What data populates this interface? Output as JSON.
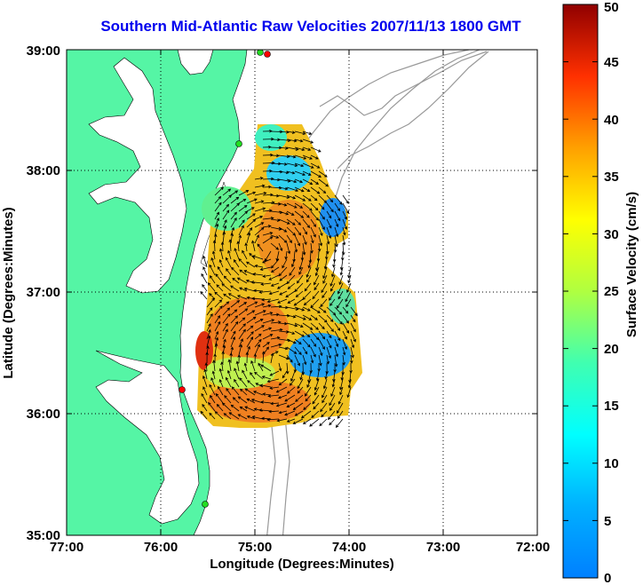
{
  "title": "Southern Mid-Atlantic Raw Velocities 2007/11/13 1800 GMT",
  "map": {
    "land_color": "#55f5a5",
    "ocean_color": "#ffffff",
    "bathymetry_color": "#999999",
    "station_colors": {
      "red": "#ff0000",
      "green": "#22dd22"
    },
    "x_axis": {
      "label": "Longitude (Degrees:Minutes)",
      "ticks": [
        "77:00",
        "76:00",
        "75:00",
        "74:00",
        "73:00",
        "72:00"
      ]
    },
    "y_axis": {
      "label": "Latitude (Degrees:Minutes)",
      "ticks": [
        "35:00",
        "36:00",
        "37:00",
        "38:00",
        "39:00"
      ]
    },
    "grid": "dotted"
  },
  "colorbar": {
    "label": "Surface Velocity (cm/s)",
    "ticks": [
      "0",
      "5",
      "10",
      "15",
      "20",
      "25",
      "30",
      "35",
      "40",
      "45",
      "50"
    ],
    "range": [
      0,
      50
    ],
    "colormap": "jet"
  }
}
